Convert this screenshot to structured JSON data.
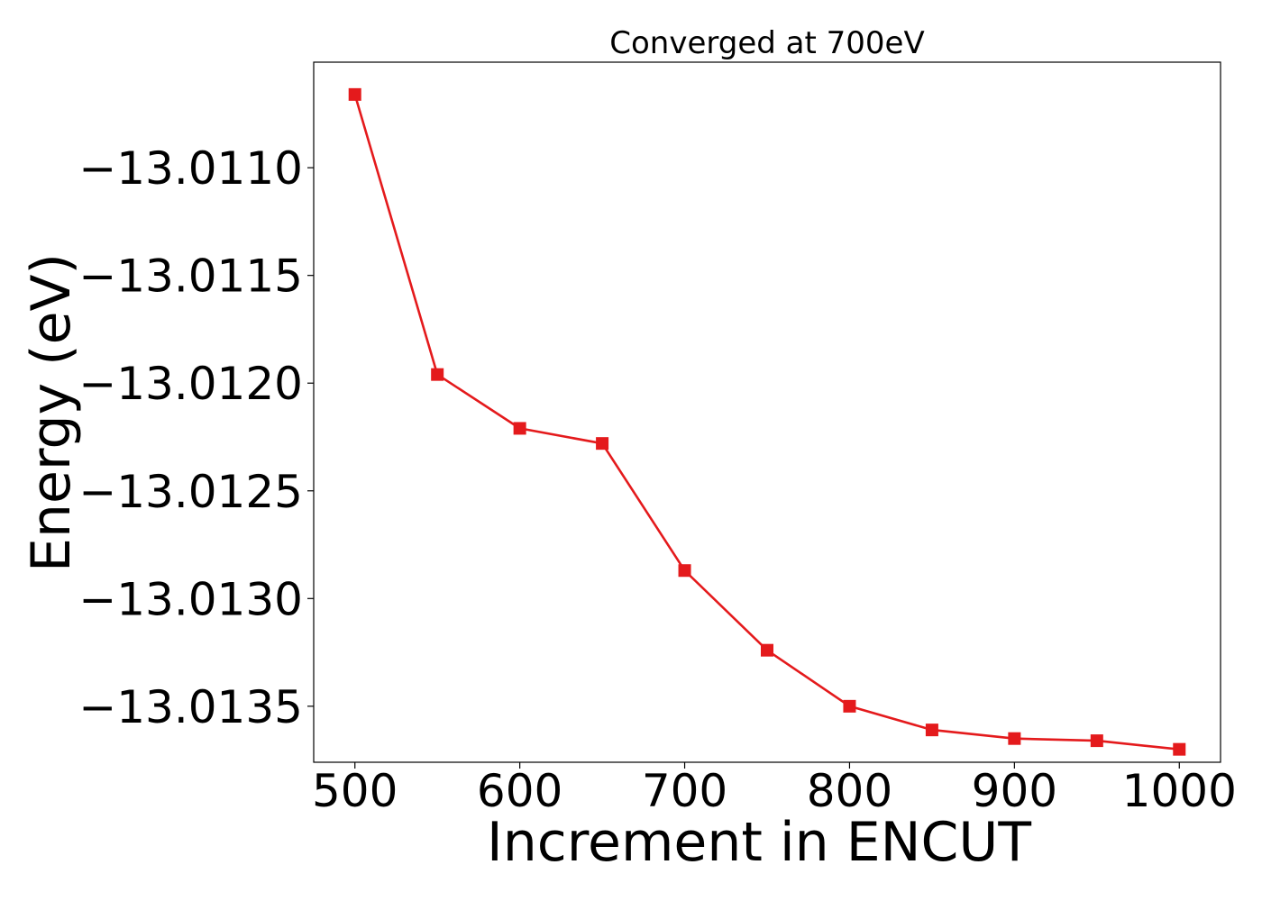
{
  "chart_data": {
    "type": "line",
    "title": "Converged at 700eV",
    "xlabel": "Increment in ENCUT",
    "ylabel": "Energy (eV)",
    "x": [
      500,
      550,
      600,
      650,
      700,
      750,
      800,
      850,
      900,
      950,
      1000
    ],
    "series": [
      {
        "values": [
          -13.01066,
          -13.01196,
          -13.01221,
          -13.01228,
          -13.01287,
          -13.01324,
          -13.0135,
          -13.01361,
          -13.01365,
          -13.01366,
          -13.0137
        ],
        "color": "#e41a1c",
        "marker": "square"
      }
    ],
    "xlim": [
      475,
      1025
    ],
    "ylim": [
      -13.01376,
      -13.01051
    ],
    "xticks": [
      500,
      600,
      700,
      800,
      900,
      1000
    ],
    "xtick_labels": [
      "500",
      "600",
      "700",
      "800",
      "900",
      "1000"
    ],
    "yticks": [
      -13.011,
      -13.0115,
      -13.012,
      -13.0125,
      -13.013,
      -13.0135
    ],
    "ytick_labels": [
      "−13.0110",
      "−13.0115",
      "−13.0120",
      "−13.0125",
      "−13.0130",
      "−13.0135"
    ],
    "grid": false,
    "legend": "none"
  }
}
